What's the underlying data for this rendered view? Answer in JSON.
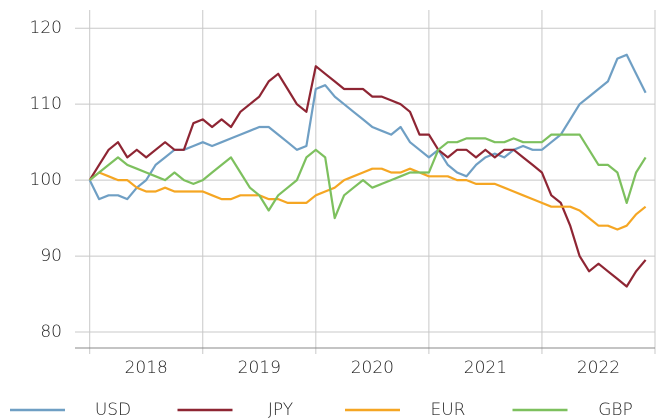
{
  "chart_data": {
    "type": "line",
    "x": [
      2018.0,
      2018.083,
      2018.167,
      2018.25,
      2018.333,
      2018.417,
      2018.5,
      2018.583,
      2018.667,
      2018.75,
      2018.833,
      2018.917,
      2019.0,
      2019.083,
      2019.167,
      2019.25,
      2019.333,
      2019.417,
      2019.5,
      2019.583,
      2019.667,
      2019.75,
      2019.833,
      2019.917,
      2020.0,
      2020.083,
      2020.167,
      2020.25,
      2020.333,
      2020.417,
      2020.5,
      2020.583,
      2020.667,
      2020.75,
      2020.833,
      2020.917,
      2021.0,
      2021.083,
      2021.167,
      2021.25,
      2021.333,
      2021.417,
      2021.5,
      2021.583,
      2021.667,
      2021.75,
      2021.833,
      2021.917,
      2022.0,
      2022.083,
      2022.167,
      2022.25,
      2022.333,
      2022.417,
      2022.5,
      2022.583,
      2022.667,
      2022.75,
      2022.833,
      2022.917
    ],
    "series": [
      {
        "name": "USD",
        "color": "#6f9fc4",
        "values": [
          100,
          97.5,
          98,
          98,
          97.5,
          99,
          100,
          102,
          103,
          104,
          104,
          104.5,
          105,
          104.5,
          105,
          105.5,
          106,
          106.5,
          107,
          107,
          106,
          105,
          104,
          104.5,
          112,
          112.5,
          111,
          110,
          109,
          108,
          107,
          106.5,
          106,
          107,
          105,
          104,
          103,
          104,
          102,
          101,
          100.5,
          102,
          103,
          103.5,
          103,
          104,
          104.5,
          104,
          104,
          105,
          106,
          108,
          110,
          111,
          112,
          113,
          116,
          116.5,
          114,
          111.5
        ]
      },
      {
        "name": "JPY",
        "color": "#8e2533",
        "values": [
          100,
          102,
          104,
          105,
          103,
          104,
          103,
          104,
          105,
          104,
          104,
          107.5,
          108,
          107,
          108,
          107,
          109,
          110,
          111,
          113,
          114,
          112,
          110,
          109,
          115,
          114,
          113,
          112,
          112,
          112,
          111,
          111,
          110.5,
          110,
          109,
          106,
          106,
          104,
          103,
          104,
          104,
          103,
          104,
          103,
          104,
          104,
          103,
          102,
          101,
          98,
          97,
          94,
          90,
          88,
          89,
          88,
          87,
          86,
          88,
          89.5
        ]
      },
      {
        "name": "EUR",
        "color": "#f5a623",
        "values": [
          100,
          101,
          100.5,
          100,
          100,
          99,
          98.5,
          98.5,
          99,
          98.5,
          98.5,
          98.5,
          98.5,
          98,
          97.5,
          97.5,
          98,
          98,
          98,
          97.5,
          97.5,
          97,
          97,
          97,
          98,
          98.5,
          99,
          100,
          100.5,
          101,
          101.5,
          101.5,
          101,
          101,
          101.5,
          101,
          100.5,
          100.5,
          100.5,
          100,
          100,
          99.5,
          99.5,
          99.5,
          99,
          98.5,
          98,
          97.5,
          97,
          96.5,
          96.5,
          96.5,
          96,
          95,
          94,
          94,
          93.5,
          94,
          95.5,
          96.5
        ]
      },
      {
        "name": "GBP",
        "color": "#7dc05e",
        "values": [
          100,
          101,
          102,
          103,
          102,
          101.5,
          101,
          100.5,
          100,
          101,
          100,
          99.5,
          100,
          101,
          102,
          103,
          101,
          99,
          98,
          96,
          98,
          99,
          100,
          103,
          104,
          103,
          95,
          98,
          99,
          100,
          99,
          99.5,
          100,
          100.5,
          101,
          101,
          101,
          104,
          105,
          105,
          105.5,
          105.5,
          105.5,
          105,
          105,
          105.5,
          105,
          105,
          105,
          106,
          106,
          106,
          106,
          104,
          102,
          102,
          101,
          97,
          101,
          103
        ]
      }
    ],
    "xlim": [
      2017.87,
      2023.0
    ],
    "xgrid": [
      2018,
      2019,
      2020,
      2021,
      2022,
      2023
    ],
    "xticks": [
      {
        "value": 2018.5,
        "label": "2018"
      },
      {
        "value": 2019.5,
        "label": "2019"
      },
      {
        "value": 2020.5,
        "label": "2020"
      },
      {
        "value": 2021.5,
        "label": "2021"
      },
      {
        "value": 2022.5,
        "label": "2022"
      }
    ],
    "ylim": [
      77.9,
      122.4
    ],
    "yticks": [
      80,
      90,
      100,
      110,
      120
    ],
    "grid": true,
    "legend": "bottom"
  }
}
